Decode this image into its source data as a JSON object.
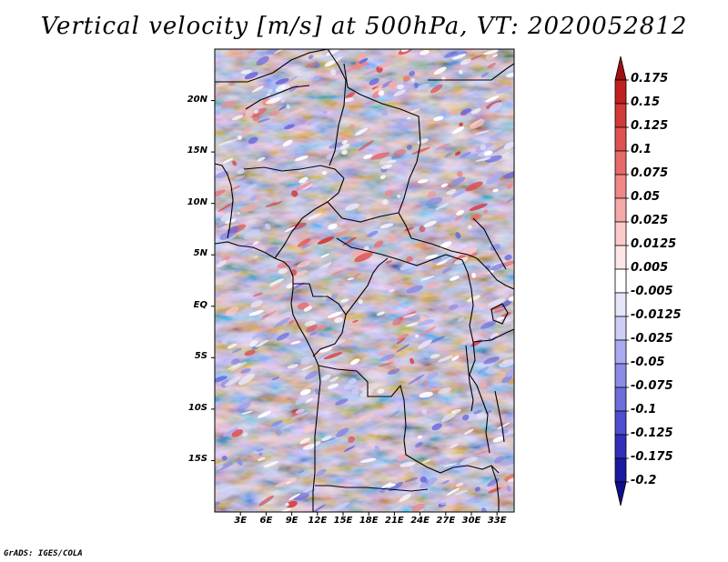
{
  "title": "Vertical velocity [m/s] at 500hPa, VT: 2020052812",
  "credit": "GrADS: IGES/COLA",
  "map": {
    "lon_range": [
      0,
      35
    ],
    "lat_range": [
      -20,
      25
    ],
    "lat_labels": [
      "20N",
      "15N",
      "10N",
      "5N",
      "EQ",
      "5S",
      "10S",
      "15S"
    ],
    "lat_values": [
      20,
      15,
      10,
      5,
      0,
      -5,
      -10,
      -15
    ],
    "lon_labels": [
      "3E",
      "6E",
      "9E",
      "12E",
      "15E",
      "18E",
      "21E",
      "24E",
      "27E",
      "30E",
      "33E"
    ],
    "lon_values": [
      3,
      6,
      9,
      12,
      15,
      18,
      21,
      24,
      27,
      30,
      33
    ]
  },
  "colorbar": {
    "labels": [
      "0.175",
      "0.15",
      "0.125",
      "0.1",
      "0.075",
      "0.05",
      "0.025",
      "0.0125",
      "0.005",
      "-0.005",
      "-0.0125",
      "-0.025",
      "-0.05",
      "-0.075",
      "-0.1",
      "-0.125",
      "-0.175",
      "-0.2"
    ],
    "colors": [
      "#a01010",
      "#c02020",
      "#d23a3a",
      "#e05252",
      "#e86a6a",
      "#f08888",
      "#f6a9a9",
      "#fbcaca",
      "#fde6e6",
      "#ffffff",
      "#e6e6fb",
      "#cdcdf6",
      "#aaaaf0",
      "#8c8ce6",
      "#6d6ddc",
      "#4e4ed0",
      "#3030bc",
      "#1a1aa0",
      "#10108a"
    ]
  }
}
